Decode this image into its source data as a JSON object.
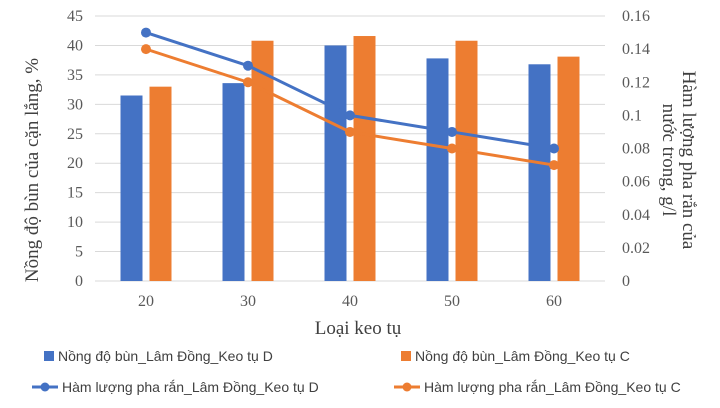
{
  "colors": {
    "series_d": "#4472C4",
    "series_c": "#ED7D31",
    "grid": "#D9D9D9",
    "axis_text": "#595959"
  },
  "chart_data": {
    "type": "bar",
    "title": "",
    "categories": [
      "20",
      "30",
      "40",
      "50",
      "60"
    ],
    "xlabel": "Loại keo tụ",
    "ylabel": "Nồng độ bùn của cặn lắng, %",
    "ylabel_right_line1": "Hàm lượng pha rắn của",
    "ylabel_right_line2": "nước trong, g/l",
    "ylim": [
      0,
      45
    ],
    "y_ticks": [
      "0",
      "5",
      "10",
      "15",
      "20",
      "25",
      "30",
      "35",
      "40",
      "45"
    ],
    "y2lim": [
      0,
      0.16
    ],
    "y2_ticks": [
      "0",
      "0.02",
      "0.04",
      "0.06",
      "0.08",
      "0.1",
      "0.12",
      "0.14",
      "0.16"
    ],
    "grid": "horizontal",
    "legend_position": "bottom",
    "series": [
      {
        "name": "Nồng độ bùn_Lâm Đồng_Keo tụ D",
        "type": "bar",
        "axis": "left",
        "color": "#4472C4",
        "values": [
          31.5,
          33.6,
          40,
          37.8,
          36.8
        ]
      },
      {
        "name": "Nồng độ bùn_Lâm Đồng_Keo tụ C",
        "type": "bar",
        "axis": "left",
        "color": "#ED7D31",
        "values": [
          33,
          40.8,
          41.6,
          40.8,
          38.1
        ]
      },
      {
        "name": "Hàm lượng pha rắn_Lâm Đồng_Keo tụ D",
        "type": "line",
        "axis": "right",
        "color": "#4472C4",
        "values": [
          0.15,
          0.13,
          0.1,
          0.09,
          0.08
        ]
      },
      {
        "name": "Hàm lượng pha rắn_Lâm Đồng_Keo tụ C",
        "type": "line",
        "axis": "right",
        "color": "#ED7D31",
        "values": [
          0.14,
          0.12,
          0.09,
          0.08,
          0.07
        ]
      }
    ]
  }
}
